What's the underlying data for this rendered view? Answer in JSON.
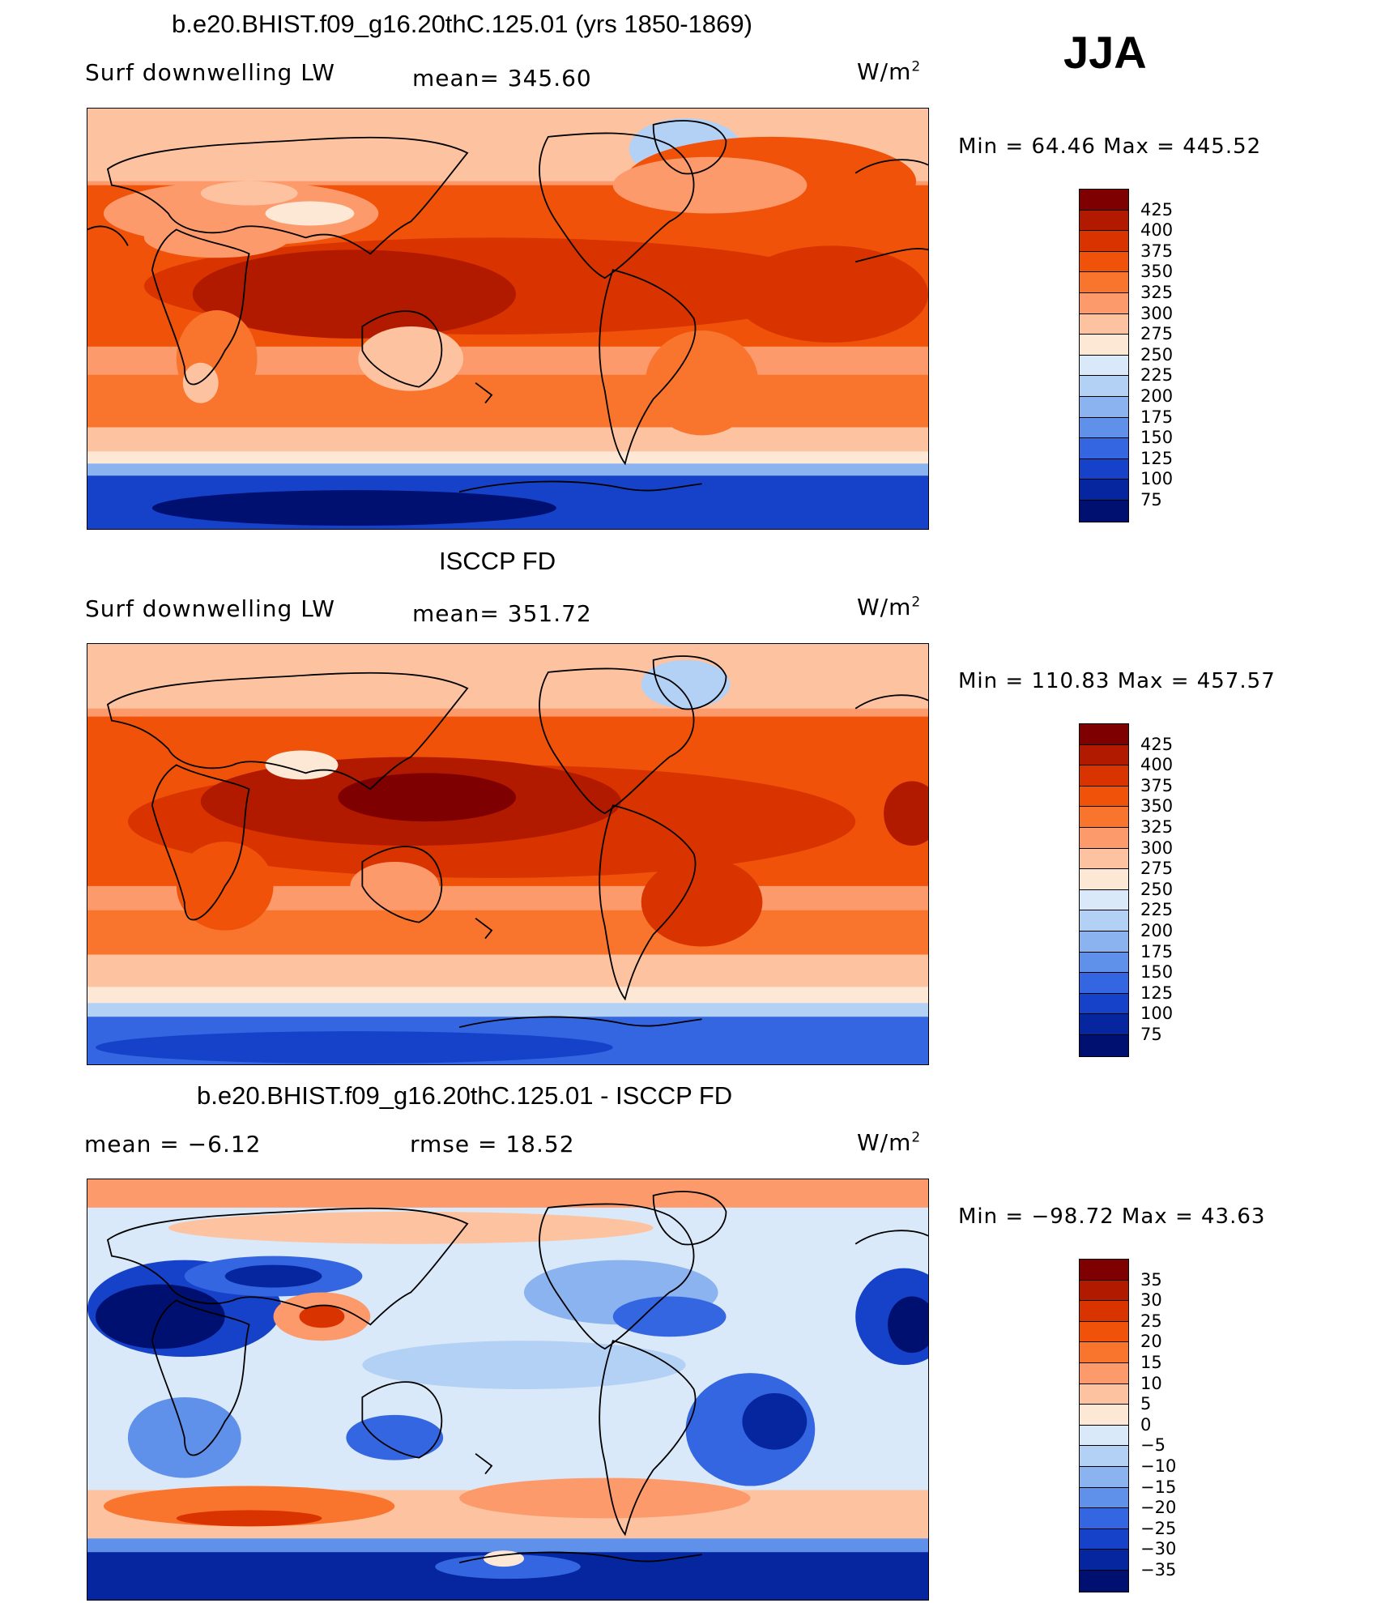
{
  "season": "JJA",
  "panels": [
    {
      "title": "b.e20.BHIST.f09_g16.20thC.125.01 (yrs 1850-1869)",
      "left_label": "Surf downwelling LW",
      "center_label": "mean= 345.60",
      "units_base": "W/m",
      "units_sup": "2",
      "minmax": "Min =   64.46 Max = 445.52",
      "colorbar": {
        "labels": [
          "425",
          "400",
          "375",
          "350",
          "325",
          "300",
          "275",
          "250",
          "225",
          "200",
          "175",
          "150",
          "125",
          "100",
          "75"
        ],
        "colors": [
          "#7f0000",
          "#b21a00",
          "#d93300",
          "#f0520a",
          "#f9742c",
          "#fc9a6c",
          "#fdc3a0",
          "#fde8d6",
          "#d9e9f9",
          "#b3d0f5",
          "#8ab3f0",
          "#5f90ea",
          "#3366e0",
          "#1542c8",
          "#0626a0",
          "#001070"
        ]
      }
    },
    {
      "title": "ISCCP FD",
      "left_label": "Surf downwelling LW",
      "center_label": "mean= 351.72",
      "units_base": "W/m",
      "units_sup": "2",
      "minmax": "Min = 110.83 Max = 457.57",
      "colorbar": {
        "labels": [
          "425",
          "400",
          "375",
          "350",
          "325",
          "300",
          "275",
          "250",
          "225",
          "200",
          "175",
          "150",
          "125",
          "100",
          "75"
        ],
        "colors": [
          "#7f0000",
          "#b21a00",
          "#d93300",
          "#f0520a",
          "#f9742c",
          "#fc9a6c",
          "#fdc3a0",
          "#fde8d6",
          "#d9e9f9",
          "#b3d0f5",
          "#8ab3f0",
          "#5f90ea",
          "#3366e0",
          "#1542c8",
          "#0626a0",
          "#001070"
        ]
      }
    },
    {
      "title": "b.e20.BHIST.f09_g16.20thC.125.01 - ISCCP FD",
      "left_label": "mean =   −6.12",
      "center_label": "rmse =   18.52",
      "units_base": "W/m",
      "units_sup": "2",
      "minmax": "Min = −98.72 Max =   43.63",
      "colorbar": {
        "labels": [
          "35",
          "30",
          "25",
          "20",
          "15",
          "10",
          "5",
          "0",
          "−5",
          "−10",
          "−15",
          "−20",
          "−25",
          "−30",
          "−35"
        ],
        "colors": [
          "#7f0000",
          "#b21a00",
          "#d93300",
          "#f0520a",
          "#f9742c",
          "#fc9a6c",
          "#fdc3a0",
          "#fde8d6",
          "#d9e9f9",
          "#b3d0f5",
          "#8ab3f0",
          "#5f90ea",
          "#3366e0",
          "#1542c8",
          "#0626a0",
          "#001070"
        ]
      }
    }
  ]
}
